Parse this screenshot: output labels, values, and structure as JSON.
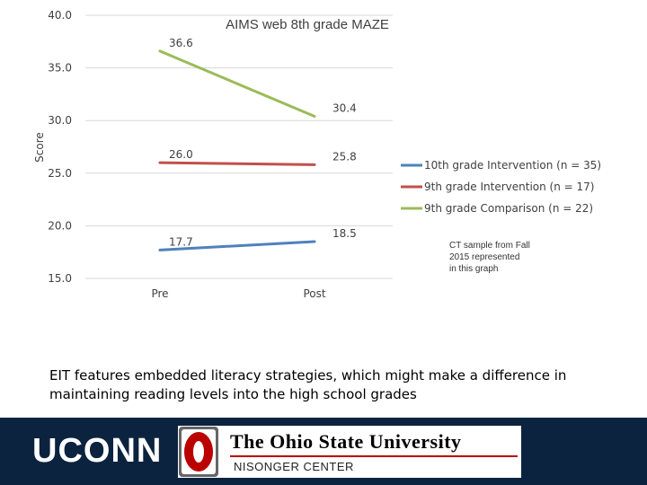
{
  "chart_data": {
    "type": "line",
    "title": "AIMS web 8th grade MAZE",
    "ylabel": "Score",
    "xlabel": "",
    "categories": [
      "Pre",
      "Post"
    ],
    "ylim": [
      15.0,
      40.0
    ],
    "yticks": [
      "15.0",
      "20.0",
      "25.0",
      "30.0",
      "35.0",
      "40.0"
    ],
    "grid": true,
    "legend_position": "right",
    "series": [
      {
        "name": "10th grade Intervention (n = 35)",
        "values": [
          17.7,
          18.5
        ],
        "labels": [
          "17.7",
          "18.5"
        ],
        "color": "#4f81bd"
      },
      {
        "name": "9th grade Intervention (n = 17)",
        "values": [
          26.0,
          25.8
        ],
        "labels": [
          "26.0",
          "25.8"
        ],
        "color": "#c0504d"
      },
      {
        "name": "9th grade Comparison (n = 22)",
        "values": [
          36.6,
          30.4
        ],
        "labels": [
          "36.6",
          "30.4"
        ],
        "color": "#9bbb59"
      }
    ]
  },
  "note": {
    "line1": "CT sample from Fall",
    "line2": "2015 represented",
    "line3": "in this graph"
  },
  "caption": {
    "text": "EIT features embedded literacy strategies, which might make a difference in maintaining reading levels into the high school grades"
  },
  "footer": {
    "uconn_logo": "UCONN",
    "osu_name": "The Ohio State University",
    "osu_center": "NISONGER CENTER",
    "osu_seal_letter": "O",
    "background": "#0c2340",
    "osu_red": "#bb0000"
  }
}
